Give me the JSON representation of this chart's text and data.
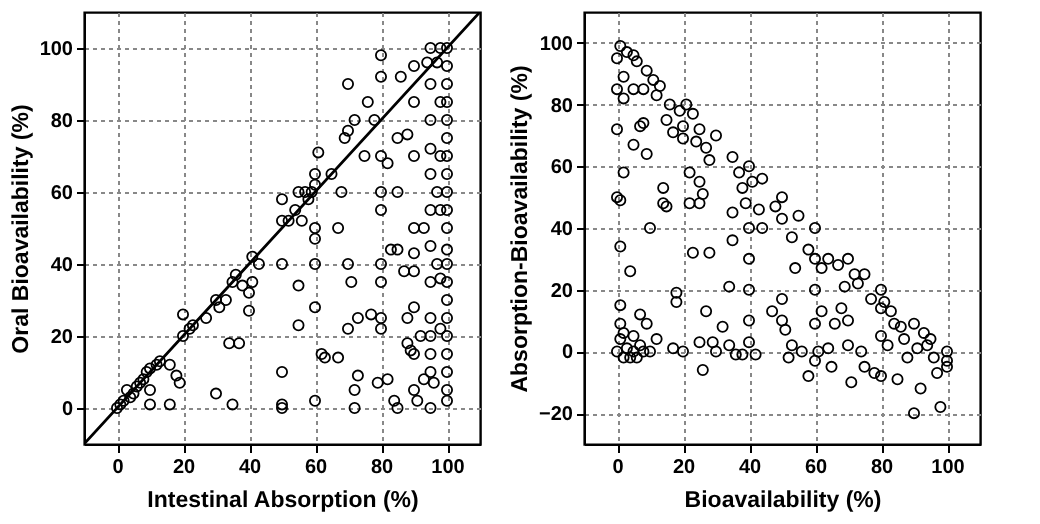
{
  "chart_data": [
    {
      "type": "scatter",
      "xlabel": "Intestinal Absorption (%)",
      "ylabel": "Oral Bioavailability (%)",
      "xlim": [
        -10,
        110
      ],
      "ylim": [
        -10,
        110
      ],
      "xticks": [
        0,
        20,
        40,
        60,
        80,
        100
      ],
      "yticks": [
        0,
        20,
        40,
        60,
        80,
        100
      ],
      "grid": true,
      "marker": "circle",
      "series": [
        {
          "color": "#000000",
          "x": [
            0,
            1,
            2,
            3,
            4,
            5,
            6,
            7,
            8,
            9,
            10,
            12,
            13,
            16,
            18,
            19,
            20,
            20,
            22,
            23,
            27,
            30,
            31,
            33,
            34,
            35,
            36,
            37,
            38,
            40,
            40,
            41,
            41,
            43,
            10,
            10,
            16,
            30,
            35,
            50,
            50,
            50,
            50,
            50,
            50,
            52,
            54,
            55,
            55,
            55,
            56,
            57,
            58,
            59,
            60,
            60,
            60,
            60,
            60,
            60,
            60,
            61,
            62,
            63,
            65,
            67,
            67,
            68,
            69,
            70,
            70,
            70,
            70,
            71,
            72,
            72,
            72,
            73,
            73,
            75,
            76,
            77,
            78,
            79,
            80,
            80,
            80,
            80,
            80,
            80,
            80,
            80,
            80,
            82,
            82,
            83,
            84,
            85,
            85,
            85,
            85,
            86,
            87,
            88,
            88,
            88,
            89,
            90,
            90,
            90,
            90,
            90,
            90,
            90,
            90,
            90,
            91,
            92,
            93,
            93,
            94,
            95,
            95,
            95,
            95,
            95,
            95,
            95,
            95,
            95,
            95,
            95,
            95,
            95,
            96,
            97,
            97,
            97,
            98,
            98,
            98,
            98,
            98,
            98,
            100,
            100,
            100,
            100,
            100,
            100,
            100,
            100,
            100,
            100,
            100,
            100,
            100,
            100,
            100,
            100,
            100,
            100,
            100,
            100,
            100
          ],
          "values": [
            0,
            1,
            2,
            5,
            3,
            4,
            6,
            7,
            8,
            10,
            11,
            12,
            13,
            12,
            9,
            7,
            26,
            20,
            22,
            23,
            25,
            30,
            28,
            30,
            18,
            35,
            37,
            18,
            34,
            27,
            32,
            42,
            35,
            40,
            5,
            1,
            1,
            4,
            1,
            10,
            1,
            0,
            40,
            52,
            58,
            52,
            55,
            60,
            34,
            23,
            52,
            60,
            58,
            60,
            62,
            65,
            50,
            47,
            40,
            28,
            2,
            71,
            15,
            14,
            65,
            50,
            14,
            60,
            75,
            90,
            77,
            40,
            22,
            35,
            5,
            0,
            80,
            25,
            9,
            70,
            85,
            26,
            80,
            7,
            98,
            92,
            70,
            60,
            55,
            40,
            35,
            25,
            22,
            8,
            68,
            44,
            2,
            0,
            44,
            60,
            75,
            92,
            38,
            25,
            18,
            76,
            16,
            95,
            85,
            70,
            50,
            43,
            38,
            28,
            15,
            5,
            2,
            20,
            8,
            50,
            96,
            100,
            90,
            80,
            72,
            65,
            55,
            45,
            35,
            25,
            20,
            15,
            10,
            0,
            7,
            60,
            40,
            96,
            100,
            85,
            70,
            55,
            36,
            22,
            100,
            95,
            90,
            85,
            80,
            75,
            70,
            65,
            60,
            55,
            50,
            44,
            40,
            35,
            30,
            25,
            20,
            15,
            10,
            5,
            2
          ]
        },
        {
          "type": "line",
          "marker": "none",
          "color": "#000000",
          "x": [
            -10,
            110
          ],
          "values": [
            -10,
            110
          ]
        }
      ]
    },
    {
      "type": "scatter",
      "xlabel": "Bioavailability (%)",
      "ylabel": "Absorption-Bioavailability (%)",
      "xlim": [
        -10,
        110
      ],
      "ylim": [
        -30,
        110
      ],
      "xticks": [
        0,
        20,
        40,
        60,
        80,
        100
      ],
      "yticks": [
        -20,
        0,
        20,
        40,
        60,
        80,
        100
      ],
      "grid": true,
      "marker": "circle",
      "series": [
        {
          "color": "#000000",
          "x": [
            0,
            0,
            0,
            0,
            0,
            1,
            1,
            1,
            1,
            1,
            1,
            2,
            2,
            2,
            2,
            2,
            3,
            3,
            4,
            4,
            5,
            5,
            5,
            5,
            5,
            6,
            6,
            7,
            7,
            7,
            8,
            8,
            8,
            9,
            9,
            9,
            10,
            10,
            11,
            12,
            12,
            13,
            14,
            14,
            15,
            15,
            16,
            17,
            17,
            18,
            18,
            19,
            20,
            20,
            20,
            21,
            22,
            22,
            23,
            23,
            24,
            25,
            25,
            25,
            25,
            26,
            26,
            27,
            27,
            28,
            28,
            29,
            30,
            30,
            32,
            34,
            34,
            35,
            35,
            35,
            36,
            37,
            38,
            38,
            39,
            40,
            40,
            40,
            40,
            40,
            40,
            41,
            42,
            43,
            44,
            44,
            47,
            48,
            50,
            50,
            50,
            50,
            51,
            52,
            53,
            53,
            54,
            55,
            56,
            58,
            58,
            60,
            60,
            60,
            60,
            60,
            61,
            62,
            62,
            64,
            64,
            65,
            66,
            67,
            68,
            69,
            70,
            70,
            70,
            71,
            72,
            73,
            74,
            75,
            75,
            77,
            78,
            80,
            80,
            80,
            80,
            81,
            82,
            83,
            84,
            85,
            86,
            87,
            88,
            90,
            90,
            91,
            92,
            93,
            94,
            95,
            96,
            97,
            98,
            100,
            100,
            100
          ],
          "values": [
            95,
            85,
            72,
            50,
            0,
            99,
            49,
            34,
            15,
            9,
            4,
            89,
            82,
            58,
            6,
            -2,
            97,
            1,
            26,
            -2,
            96,
            85,
            67,
            5,
            0,
            94,
            -2,
            73,
            12,
            2,
            85,
            74,
            0,
            91,
            64,
            9,
            40,
            0,
            88,
            83,
            4,
            86,
            53,
            48,
            47,
            75,
            80,
            71,
            1,
            19,
            16,
            78,
            73,
            69,
            0,
            80,
            58,
            48,
            77,
            32,
            68,
            72,
            55,
            48,
            3,
            -6,
            51,
            66,
            13,
            32,
            62,
            3,
            70,
            0,
            8,
            21,
            2,
            63,
            45,
            36,
            -1,
            58,
            53,
            -1,
            48,
            60,
            40,
            30,
            20,
            10,
            3,
            55,
            -1,
            46,
            56,
            40,
            13,
            47,
            50,
            43,
            17,
            10,
            7,
            -2,
            37,
            2,
            27,
            44,
            0,
            -8,
            33,
            40,
            30,
            20,
            9,
            -3,
            0,
            13,
            27,
            30,
            1,
            -5,
            9,
            28,
            14,
            21,
            30,
            10,
            2,
            -10,
            25,
            22,
            0,
            25,
            -5,
            17,
            -7,
            20,
            14,
            5,
            -8,
            16,
            2,
            13,
            9,
            -9,
            8,
            4,
            -2,
            9,
            -20,
            1,
            -12,
            6,
            2,
            4,
            -2,
            -7,
            -18,
            0,
            -3,
            -5
          ]
        }
      ]
    }
  ]
}
